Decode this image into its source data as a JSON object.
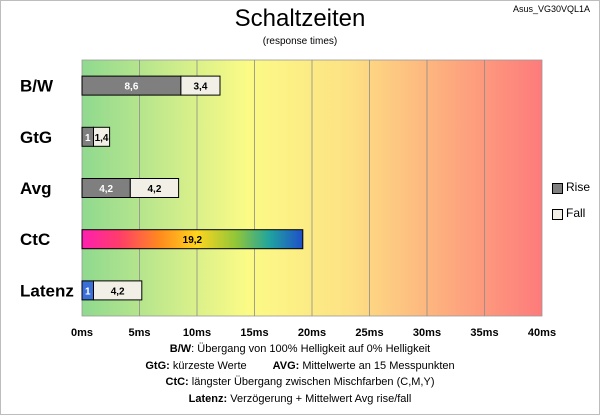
{
  "header": {
    "title": "Schaltzeiten",
    "subtitle": "(response times)",
    "model": "Asus_VG30VQL1A"
  },
  "legend": {
    "rise": {
      "label": "Rise",
      "color": "#7f7f7f"
    },
    "fall": {
      "label": "Fall",
      "color": "#f2f0e6"
    }
  },
  "notes": {
    "bw_key": "B/W",
    "bw_text": ":  Übergang von 100% Helligkeit auf 0% Helligkeit",
    "gtg_key": "GtG:",
    "gtg_text": " kürzeste  Werte",
    "avg_key": "AVG:",
    "avg_text": " Mittelwerte  an 15 Messpunkten",
    "ctc_key": "CtC:",
    "ctc_text": " längster Übergang  zwischen Mischfarben  (C,M,Y)",
    "lat_key": "Latenz:",
    "lat_text": " Verzögerung  + Mittelwert Avg rise/fall"
  },
  "chart_data": {
    "type": "bar",
    "orientation": "horizontal",
    "stacked": true,
    "title": "Schaltzeiten",
    "subtitle": "(response times)",
    "categories": [
      "B/W",
      "GtG",
      "Avg",
      "CtC",
      "Latenz"
    ],
    "series": [
      {
        "name": "Rise",
        "values": [
          8.6,
          1,
          4.2,
          19.2,
          1
        ],
        "labels": [
          "8,6",
          "1",
          "4,2",
          "19,2",
          "1"
        ]
      },
      {
        "name": "Fall",
        "values": [
          3.4,
          1.4,
          4.2,
          null,
          4.2
        ],
        "labels": [
          "3,4",
          "1,4",
          "4,2",
          "",
          "4,2"
        ]
      }
    ],
    "xlim": [
      0,
      40
    ],
    "xticks": [
      "0ms",
      "5ms",
      "10ms",
      "15ms",
      "20ms",
      "25ms",
      "30ms",
      "35ms",
      "40ms"
    ],
    "grid": true,
    "legend_position": "right",
    "background": "gradient green-yellow-red",
    "colors": {
      "rise": "#7f7f7f",
      "fall": "#f2f0e6",
      "latenz_rise": "#3a6fd8"
    }
  }
}
